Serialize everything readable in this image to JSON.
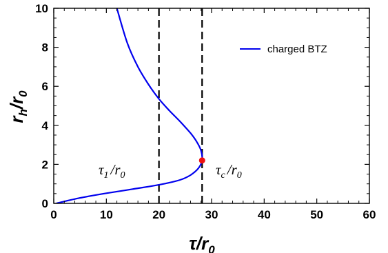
{
  "chart_data": {
    "type": "line",
    "xlabel": {
      "main": "τ/r",
      "sub": "0"
    },
    "ylabel": {
      "main": "r",
      "sub1": "h",
      "mid": "/r",
      "sub2": "0"
    },
    "xlim": [
      0,
      60
    ],
    "ylim": [
      0,
      10
    ],
    "xticks": [
      "0",
      "10",
      "20",
      "30",
      "40",
      "50",
      "60"
    ],
    "yticks": [
      "0",
      "2",
      "4",
      "6",
      "8",
      "10"
    ],
    "grid": false,
    "legend_position": "top-right",
    "series": [
      {
        "name": "charged BTZ",
        "color": "#0000ee",
        "x": [
          0.5,
          5,
          10,
          15,
          20,
          24,
          26,
          27.5,
          28.2,
          28.0,
          27.2,
          26,
          24,
          22,
          20,
          18,
          16,
          14,
          12
        ],
        "y": [
          0.0,
          0.28,
          0.52,
          0.73,
          0.95,
          1.2,
          1.45,
          1.8,
          2.2,
          2.7,
          3.15,
          3.6,
          4.2,
          4.75,
          5.35,
          6.1,
          7.0,
          8.2,
          10.0
        ]
      }
    ],
    "vlines": [
      {
        "x": 20,
        "label_main": "τ",
        "label_sub": "1",
        "label_tail": "/r",
        "label_sub2": "0"
      },
      {
        "x": 28.2,
        "label_main": "τ",
        "label_sub": "c",
        "label_tail": "/r",
        "label_sub2": "0"
      }
    ],
    "marker": {
      "x": 28.2,
      "y": 2.2,
      "color": "#ee1111"
    }
  }
}
